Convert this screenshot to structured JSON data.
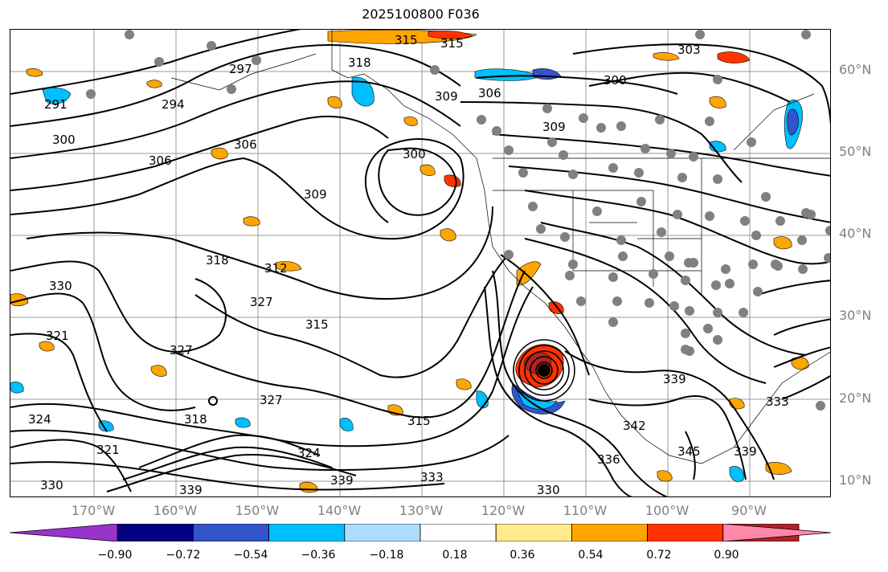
{
  "title": "2025100800 F036",
  "lat_labels": [
    "60°N",
    "50°N",
    "40°N",
    "30°N",
    "20°N",
    "10°N"
  ],
  "lon_labels": [
    "170°W",
    "160°W",
    "150°W",
    "140°W",
    "130°W",
    "120°W",
    "110°W",
    "100°W",
    "90°W"
  ],
  "colorbar": {
    "ticks": [
      "−0.90",
      "−0.72",
      "−0.54",
      "−0.36",
      "−0.18",
      "0.18",
      "0.36",
      "0.54",
      "0.72",
      "0.90"
    ],
    "colors": [
      "#9933cc",
      "#000080",
      "#3355cc",
      "#00bfff",
      "#aaddff",
      "#ffffff",
      "#ffeb8a",
      "#ffa500",
      "#ff3300",
      "#b22222",
      "#ff88aa"
    ]
  },
  "contour_labels": [
    "291",
    "294",
    "297",
    "300",
    "303",
    "306",
    "309",
    "312",
    "315",
    "318",
    "321",
    "324",
    "327",
    "330",
    "333",
    "336",
    "339",
    "342",
    "345"
  ]
}
